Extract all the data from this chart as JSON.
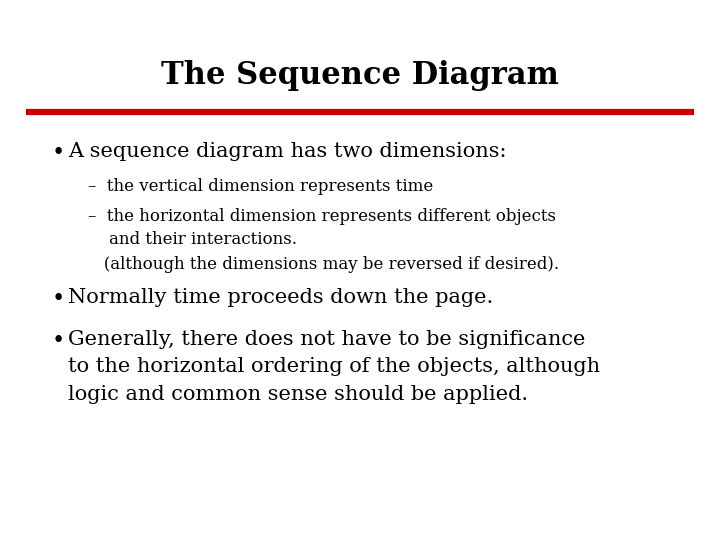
{
  "title": "The Sequence Diagram",
  "title_fontsize": 22,
  "background_color": "#ffffff",
  "text_color": "#000000",
  "separator_color": "#cc0000",
  "separator_linewidth": 4.5,
  "bullet1": "A sequence diagram has two dimensions:",
  "bullet1_fontsize": 15,
  "sub1": "–  the vertical dimension represents time",
  "sub2": "–  the horizontal dimension represents different objects\n    and their interactions.",
  "sub3": "   (although the dimensions may be reversed if desired).",
  "sub_fontsize": 12,
  "bullet2": "Normally time proceeds down the page.",
  "bullet2_fontsize": 15,
  "bullet3": "Generally, there does not have to be significance\nto the horizontal ordering of the objects, although\nlogic and common sense should be applied.",
  "bullet3_fontsize": 15,
  "content_font_family": "serif"
}
